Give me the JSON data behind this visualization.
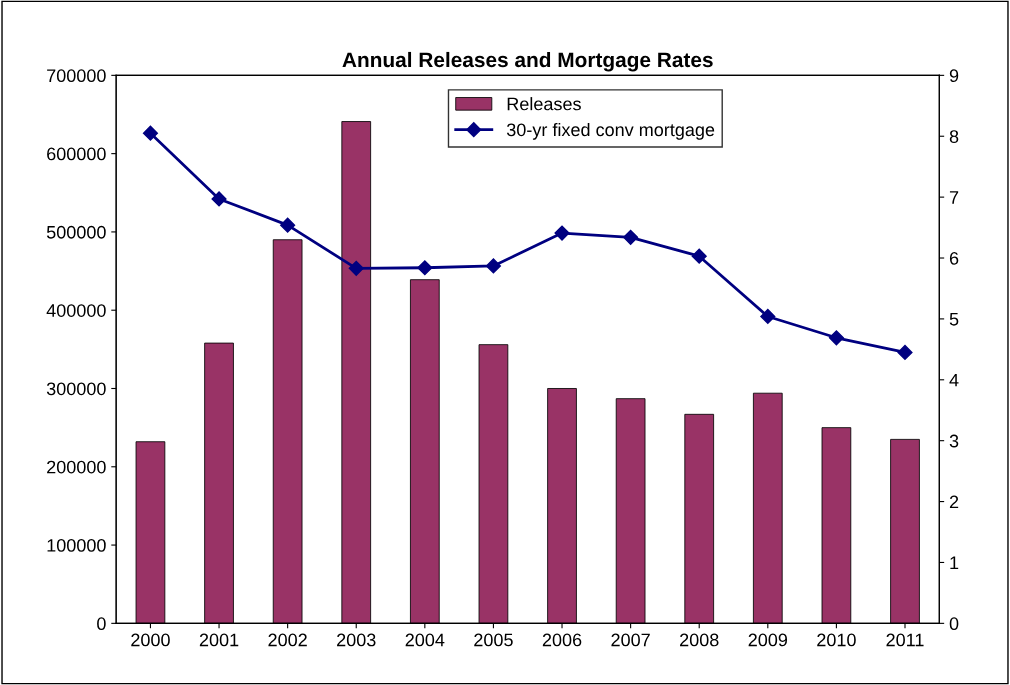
{
  "chart_data": {
    "type": "bar",
    "title": "Annual Releases and Mortgage Rates",
    "categories": [
      "2000",
      "2001",
      "2002",
      "2003",
      "2004",
      "2005",
      "2006",
      "2007",
      "2008",
      "2009",
      "2010",
      "2011"
    ],
    "series": [
      {
        "name": "Releases",
        "color": "#993366",
        "values": [
          232000,
          358000,
          490000,
          641000,
          439000,
          356000,
          300000,
          287000,
          267000,
          294000,
          250000,
          235000
        ]
      },
      {
        "name": "30-yr fixed conv mortgage",
        "type": "line",
        "axis": "y2",
        "color": "#000080",
        "marker": "diamond",
        "values": [
          8.05,
          6.97,
          6.54,
          5.83,
          5.84,
          5.87,
          6.41,
          6.34,
          6.03,
          5.04,
          4.69,
          4.45
        ]
      }
    ],
    "ylim": [
      0,
      700000
    ],
    "yticks": [
      0,
      100000,
      200000,
      300000,
      400000,
      500000,
      600000,
      700000
    ],
    "y2lim": [
      0,
      9
    ],
    "y2ticks": [
      0,
      1,
      2,
      3,
      4,
      5,
      6,
      7,
      8,
      9
    ],
    "grid": false,
    "legend": "top"
  }
}
